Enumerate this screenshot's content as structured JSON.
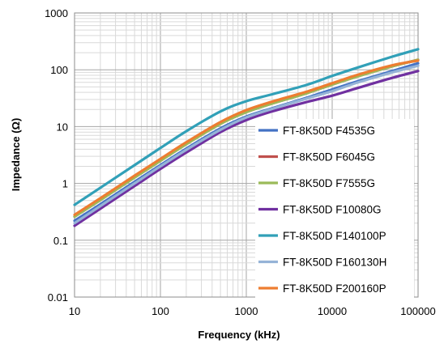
{
  "chart_data": {
    "type": "line",
    "xlabel": "Frequency (kHz)",
    "ylabel": "Impedance (Ω)",
    "xscale": "log",
    "yscale": "log",
    "xlim": [
      10,
      100000
    ],
    "ylim": [
      0.01,
      1000
    ],
    "x_ticks": [
      "10",
      "100",
      "1000",
      "10000",
      "100000"
    ],
    "y_ticks": [
      "0.01",
      "0.1",
      "1",
      "10",
      "100",
      "1000"
    ],
    "grid": true,
    "legend_position": "right",
    "x": [
      10,
      20,
      50,
      100,
      200,
      500,
      1000,
      2000,
      5000,
      10000,
      20000,
      50000,
      100000
    ],
    "series": [
      {
        "name": "FT-8K50D F4535G",
        "color": "#4472c4",
        "values": [
          0.22,
          0.43,
          1.07,
          2.1,
          4.1,
          9.3,
          15,
          21,
          32,
          45,
          63,
          95,
          130
        ]
      },
      {
        "name": "FT-8K50D F6045G",
        "color": "#c0504d",
        "values": [
          0.26,
          0.51,
          1.27,
          2.5,
          4.9,
          11.2,
          18,
          25.5,
          38.5,
          55,
          77,
          115,
          150
        ]
      },
      {
        "name": "FT-8K50D F7555G",
        "color": "#9bbb59",
        "values": [
          0.26,
          0.51,
          1.27,
          2.5,
          4.9,
          11.2,
          18,
          25.5,
          38.5,
          55,
          77,
          115,
          150
        ]
      },
      {
        "name": "FT-8K50D F10080G",
        "color": "#7030a0",
        "values": [
          0.18,
          0.36,
          0.9,
          1.8,
          3.5,
          8.0,
          13,
          18.5,
          27,
          35,
          48,
          72,
          95
        ]
      },
      {
        "name": "FT-8K50D F140100P",
        "color": "#31a0b8",
        "values": [
          0.42,
          0.84,
          2.1,
          4.2,
          8.3,
          18.5,
          28,
          37,
          54,
          78,
          110,
          170,
          230
        ]
      },
      {
        "name": "FT-8K50D F160130H",
        "color": "#95b3d7",
        "values": [
          0.2,
          0.4,
          1.0,
          2.0,
          3.9,
          8.8,
          14.5,
          20.5,
          31,
          42,
          60,
          90,
          118
        ]
      },
      {
        "name": "FT-8K50D F200160P",
        "color": "#ed7d31",
        "values": [
          0.28,
          0.55,
          1.37,
          2.7,
          5.3,
          12,
          19.5,
          27.5,
          41,
          58,
          82,
          120,
          145
        ]
      }
    ]
  }
}
